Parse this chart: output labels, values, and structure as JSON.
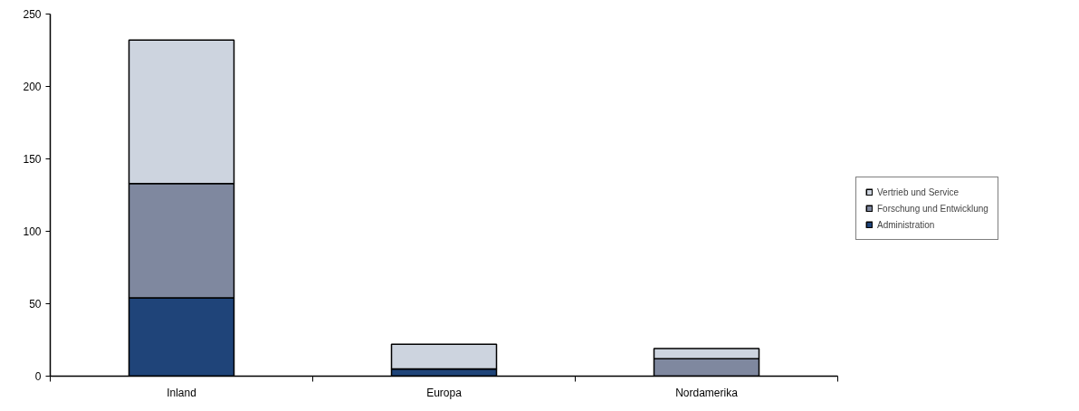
{
  "chart_data": {
    "type": "bar",
    "stacked": true,
    "categories": [
      "Inland",
      "Europa",
      "Nordamerika"
    ],
    "series": [
      {
        "name": "Administration",
        "color": "#1f4479",
        "values": [
          54,
          5,
          null
        ]
      },
      {
        "name": "Forschung und Entwicklung",
        "color": "#7f889f",
        "values": [
          79,
          0,
          12
        ]
      },
      {
        "name": "Vertrieb und Service",
        "color": "#cdd4df",
        "values": [
          99,
          17,
          7
        ]
      }
    ],
    "ylim": [
      0,
      250
    ],
    "yticks": [
      0,
      50,
      100,
      150,
      200,
      250
    ],
    "grid": false,
    "legend": "right"
  }
}
